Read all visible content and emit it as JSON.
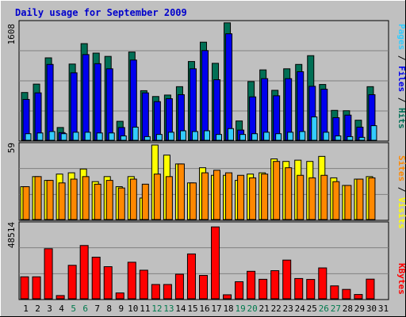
{
  "title": "Daily usage for September 2009",
  "colors": {
    "background": "#c0c0c0",
    "title": "#0000cc",
    "grid": "#808080",
    "hits": "#006f55",
    "files": "#0000ee",
    "pages": "#33ccff",
    "visits": "#ffff00",
    "sites": "#ff8800",
    "kbytes": "#ff0000",
    "weekend_label": "#007a4d"
  },
  "chart_data": [
    {
      "type": "bar",
      "name": "hits-files-pages",
      "ymax_label": "1608",
      "ylim": [
        0,
        1608
      ],
      "legend": [
        "Pages",
        "Files",
        "Hits"
      ],
      "series": [
        {
          "name": "Hits",
          "values": [
            655,
            770,
            1130,
            175,
            1045,
            1325,
            1195,
            1150,
            260,
            1210,
            680,
            600,
            620,
            735,
            1080,
            1345,
            1055,
            1610,
            265,
            805,
            965,
            685,
            980,
            1040,
            1160,
            765,
            410,
            405,
            275,
            735
          ]
        },
        {
          "name": "Files",
          "values": [
            560,
            650,
            1040,
            105,
            925,
            1175,
            1050,
            980,
            175,
            1100,
            650,
            530,
            570,
            625,
            980,
            1230,
            830,
            1460,
            140,
            595,
            845,
            610,
            845,
            940,
            740,
            700,
            310,
            345,
            180,
            625
          ]
        },
        {
          "name": "Pages",
          "values": [
            90,
            100,
            120,
            90,
            110,
            110,
            100,
            100,
            60,
            180,
            50,
            80,
            110,
            130,
            120,
            130,
            80,
            160,
            80,
            90,
            110,
            90,
            110,
            120,
            320,
            110,
            60,
            50,
            40,
            200
          ]
        }
      ]
    },
    {
      "type": "bar",
      "name": "visits-sites",
      "ymax_label": "59",
      "ylim": [
        0,
        59
      ],
      "legend": [
        "Sites",
        "Visits"
      ],
      "series": [
        {
          "name": "Visits",
          "values": [
            26,
            34,
            31,
            36,
            37,
            40,
            30,
            34,
            26,
            34,
            17,
            59,
            51,
            44,
            29,
            41,
            35,
            35,
            31,
            36,
            37,
            48,
            46,
            47,
            46,
            50,
            33,
            27,
            32,
            34
          ]
        },
        {
          "name": "Sites",
          "values": [
            26,
            34,
            31,
            29,
            32,
            34,
            28,
            31,
            25,
            32,
            28,
            36,
            34,
            44,
            29,
            37,
            39,
            37,
            35,
            33,
            36,
            46,
            41,
            35,
            33,
            35,
            30,
            27,
            32,
            33
          ]
        }
      ]
    },
    {
      "type": "bar",
      "name": "kbytes",
      "ymax_label": "48514",
      "ylim": [
        0,
        48514
      ],
      "legend": [
        "KBytes"
      ],
      "series": [
        {
          "name": "KBytes",
          "values": [
            14300,
            14300,
            32600,
            2100,
            21800,
            34700,
            27100,
            20900,
            3800,
            23800,
            18600,
            9300,
            9300,
            16000,
            29200,
            15200,
            46800,
            2600,
            11100,
            17900,
            12700,
            18300,
            25200,
            13200,
            12600,
            20100,
            8400,
            6100,
            2800,
            12800
          ]
        }
      ]
    }
  ],
  "days": [
    "1",
    "2",
    "3",
    "4",
    "5",
    "6",
    "7",
    "8",
    "9",
    "10",
    "11",
    "12",
    "13",
    "14",
    "15",
    "16",
    "17",
    "18",
    "19",
    "20",
    "21",
    "22",
    "23",
    "24",
    "25",
    "26",
    "27",
    "28",
    "29",
    "30",
    "31"
  ],
  "weekend_days": [
    5,
    6,
    12,
    13,
    19,
    20,
    26,
    27
  ]
}
